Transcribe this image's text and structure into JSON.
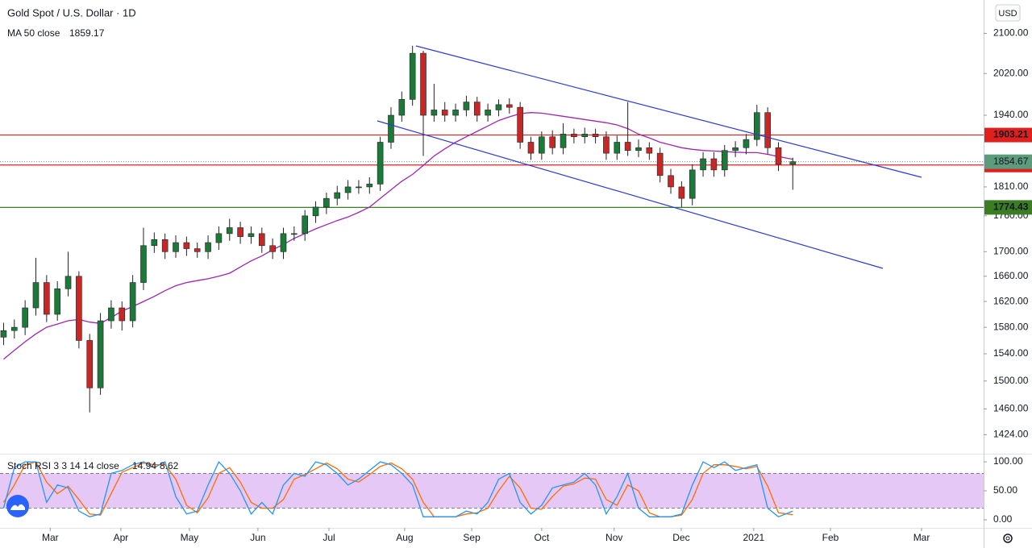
{
  "chart_data": {
    "type": "candlestick",
    "title": "Gold Spot / U.S. Dollar · 1D",
    "currency": "USD",
    "up_color": "#1b7a3a",
    "down_color": "#c62828",
    "log_y": true,
    "xlim": [
      0,
      274.2
    ],
    "xticks": [
      {
        "value": 14,
        "label": "Mar"
      },
      {
        "value": 33.7,
        "label": "Apr"
      },
      {
        "value": 52.8,
        "label": "May"
      },
      {
        "value": 71.9,
        "label": "Jun"
      },
      {
        "value": 91.7,
        "label": "Jul"
      },
      {
        "value": 112.8,
        "label": "Aug"
      },
      {
        "value": 131.5,
        "label": "Sep"
      },
      {
        "value": 151,
        "label": "Oct"
      },
      {
        "value": 171.2,
        "label": "Nov"
      },
      {
        "value": 189.9,
        "label": "Dec"
      },
      {
        "value": 210.1,
        "label": "2021"
      },
      {
        "value": 231.5,
        "label": "Feb"
      },
      {
        "value": 256.9,
        "label": "Mar"
      }
    ],
    "ylim": [
      1398,
      2169
    ],
    "yticks": [
      {
        "value": 2100,
        "label": "2100.00"
      },
      {
        "value": 2020,
        "label": "2020.00"
      },
      {
        "value": 1940,
        "label": "1940.00"
      },
      {
        "value": 1810,
        "label": "1810.00"
      },
      {
        "value": 1760,
        "label": "1760.00"
      },
      {
        "value": 1700,
        "label": "1700.00"
      },
      {
        "value": 1660,
        "label": "1660.00"
      },
      {
        "value": 1620,
        "label": "1620.00"
      },
      {
        "value": 1580,
        "label": "1580.00"
      },
      {
        "value": 1540,
        "label": "1540.00"
      },
      {
        "value": 1500,
        "label": "1500.00"
      },
      {
        "value": 1460,
        "label": "1460.00"
      },
      {
        "value": 1424,
        "label": "1424.00"
      }
    ],
    "x": [
      1,
      4,
      7,
      10,
      13,
      16,
      19,
      22,
      25,
      28,
      31,
      34,
      37,
      40,
      43,
      46,
      49,
      52,
      55,
      58,
      61,
      64,
      67,
      70,
      73,
      76,
      79,
      82,
      85,
      88,
      91,
      94,
      97,
      100,
      103,
      106,
      109,
      112,
      115,
      118,
      121,
      124,
      127,
      130,
      133,
      136,
      139,
      142,
      145,
      148,
      151,
      154,
      157,
      160,
      163,
      166,
      169,
      172,
      175,
      178,
      181,
      184,
      187,
      190,
      193,
      196,
      199,
      202,
      205,
      208,
      211,
      214,
      217,
      221
    ],
    "open": [
      1565,
      1575,
      1580,
      1610,
      1650,
      1600,
      1640,
      1660,
      1560,
      1490,
      1590,
      1610,
      1590,
      1650,
      1710,
      1720,
      1700,
      1715,
      1705,
      1700,
      1715,
      1730,
      1740,
      1725,
      1730,
      1710,
      1700,
      1730,
      1730,
      1760,
      1775,
      1790,
      1800,
      1810,
      1810,
      1815,
      1890,
      1940,
      1970,
      2060,
      1940,
      1950,
      1940,
      1950,
      1965,
      1940,
      1950,
      1960,
      1955,
      1890,
      1870,
      1900,
      1880,
      1905,
      1900,
      1905,
      1900,
      1870,
      1890,
      1875,
      1880,
      1870,
      1830,
      1810,
      1790,
      1840,
      1860,
      1840,
      1875,
      1880,
      1895,
      1945,
      1880,
      1850
    ],
    "high": [
      1587,
      1592,
      1622,
      1690,
      1662,
      1652,
      1700,
      1668,
      1570,
      1602,
      1622,
      1620,
      1662,
      1740,
      1732,
      1730,
      1727,
      1725,
      1715,
      1727,
      1742,
      1755,
      1750,
      1742,
      1740,
      1722,
      1740,
      1742,
      1770,
      1785,
      1800,
      1812,
      1822,
      1822,
      1827,
      1900,
      1955,
      1985,
      2075,
      2065,
      2000,
      1965,
      1962,
      1977,
      1975,
      1962,
      1970,
      1972,
      1965,
      1900,
      1910,
      1912,
      1925,
      1915,
      1917,
      1915,
      1910,
      1902,
      1965,
      1895,
      1890,
      1880,
      1842,
      1820,
      1850,
      1872,
      1872,
      1885,
      1892,
      1905,
      1960,
      1955,
      1890,
      1862
    ],
    "low": [
      1553,
      1563,
      1568,
      1598,
      1588,
      1590,
      1628,
      1548,
      1455,
      1480,
      1578,
      1575,
      1580,
      1638,
      1698,
      1688,
      1690,
      1693,
      1690,
      1688,
      1703,
      1718,
      1713,
      1713,
      1698,
      1688,
      1688,
      1718,
      1718,
      1748,
      1763,
      1778,
      1788,
      1798,
      1798,
      1803,
      1878,
      1928,
      1958,
      1865,
      1928,
      1928,
      1928,
      1938,
      1928,
      1928,
      1938,
      1943,
      1878,
      1858,
      1858,
      1868,
      1868,
      1888,
      1888,
      1888,
      1858,
      1858,
      1865,
      1863,
      1858,
      1818,
      1798,
      1775,
      1778,
      1828,
      1828,
      1828,
      1863,
      1868,
      1883,
      1868,
      1838,
      1805
    ],
    "close": [
      1575,
      1580,
      1610,
      1650,
      1600,
      1640,
      1660,
      1560,
      1490,
      1590,
      1610,
      1590,
      1650,
      1710,
      1720,
      1700,
      1715,
      1705,
      1700,
      1715,
      1730,
      1740,
      1725,
      1730,
      1710,
      1700,
      1730,
      1730,
      1760,
      1775,
      1790,
      1800,
      1810,
      1810,
      1815,
      1890,
      1940,
      1970,
      2060,
      1940,
      1950,
      1940,
      1950,
      1965,
      1940,
      1950,
      1960,
      1955,
      1890,
      1870,
      1900,
      1880,
      1905,
      1900,
      1905,
      1900,
      1870,
      1890,
      1875,
      1880,
      1870,
      1830,
      1810,
      1790,
      1840,
      1860,
      1840,
      1875,
      1880,
      1895,
      1945,
      1880,
      1850,
      1854.67
    ],
    "last_price_color": "#5d9b7d",
    "ma": {
      "name": "MA 50 close",
      "color": "#9c27b0",
      "values": [
        1532,
        1545,
        1558,
        1570,
        1580,
        1585,
        1590,
        1592,
        1588,
        1586,
        1595,
        1605,
        1612,
        1620,
        1628,
        1637,
        1645,
        1650,
        1653,
        1656,
        1660,
        1665,
        1675,
        1685,
        1693,
        1703,
        1712,
        1722,
        1730,
        1738,
        1745,
        1752,
        1758,
        1766,
        1775,
        1790,
        1805,
        1820,
        1832,
        1848,
        1865,
        1878,
        1890,
        1900,
        1910,
        1920,
        1930,
        1937,
        1943,
        1945,
        1944,
        1941,
        1938,
        1935,
        1932,
        1929,
        1926,
        1922,
        1915,
        1905,
        1898,
        1890,
        1885,
        1880,
        1877,
        1875,
        1874,
        1873,
        1872,
        1871,
        1871,
        1868,
        1864,
        1859.17
      ]
    },
    "levels": [
      {
        "value": 1903.21,
        "color": "#e0201c"
      },
      {
        "value": 1848.78,
        "color": "#e0201c"
      },
      {
        "value": 1774.43,
        "color": "#3a7d22"
      }
    ],
    "stoch": {
      "name": "Stoch RSI 3 3 14 14 close",
      "ylim": [
        -14,
        114
      ],
      "yticks": [
        {
          "value": 100,
          "label": "100.00"
        },
        {
          "value": 50,
          "label": "50.00"
        },
        {
          "value": 0,
          "label": "0.00"
        }
      ],
      "bands": [
        20,
        80
      ],
      "band_color": "#e6c8f7",
      "k": {
        "color": "#2196f3",
        "values": [
          20,
          90,
          100,
          100,
          30,
          60,
          55,
          15,
          5,
          10,
          80,
          85,
          95,
          100,
          90,
          100,
          40,
          10,
          15,
          60,
          100,
          80,
          50,
          10,
          30,
          10,
          60,
          80,
          75,
          100,
          95,
          80,
          60,
          70,
          85,
          100,
          95,
          80,
          60,
          5,
          5,
          5,
          5,
          15,
          10,
          30,
          70,
          80,
          30,
          10,
          25,
          55,
          60,
          65,
          80,
          60,
          10,
          40,
          80,
          20,
          5,
          5,
          5,
          10,
          60,
          100,
          90,
          100,
          85,
          90,
          95,
          20,
          5,
          14.94
        ]
      },
      "d": {
        "color": "#ff6d00",
        "values": [
          30,
          60,
          95,
          100,
          65,
          45,
          58,
          35,
          10,
          8,
          45,
          82,
          90,
          98,
          95,
          95,
          70,
          25,
          12,
          38,
          80,
          90,
          65,
          30,
          20,
          20,
          35,
          70,
          78,
          88,
          98,
          88,
          70,
          65,
          78,
          92,
          98,
          88,
          70,
          30,
          5,
          5,
          5,
          10,
          12,
          20,
          50,
          75,
          55,
          20,
          18,
          40,
          58,
          62,
          72,
          70,
          35,
          25,
          60,
          50,
          12,
          5,
          5,
          8,
          35,
          80,
          95,
          95,
          92,
          88,
          92,
          58,
          12,
          8.62
        ]
      }
    }
  }
}
